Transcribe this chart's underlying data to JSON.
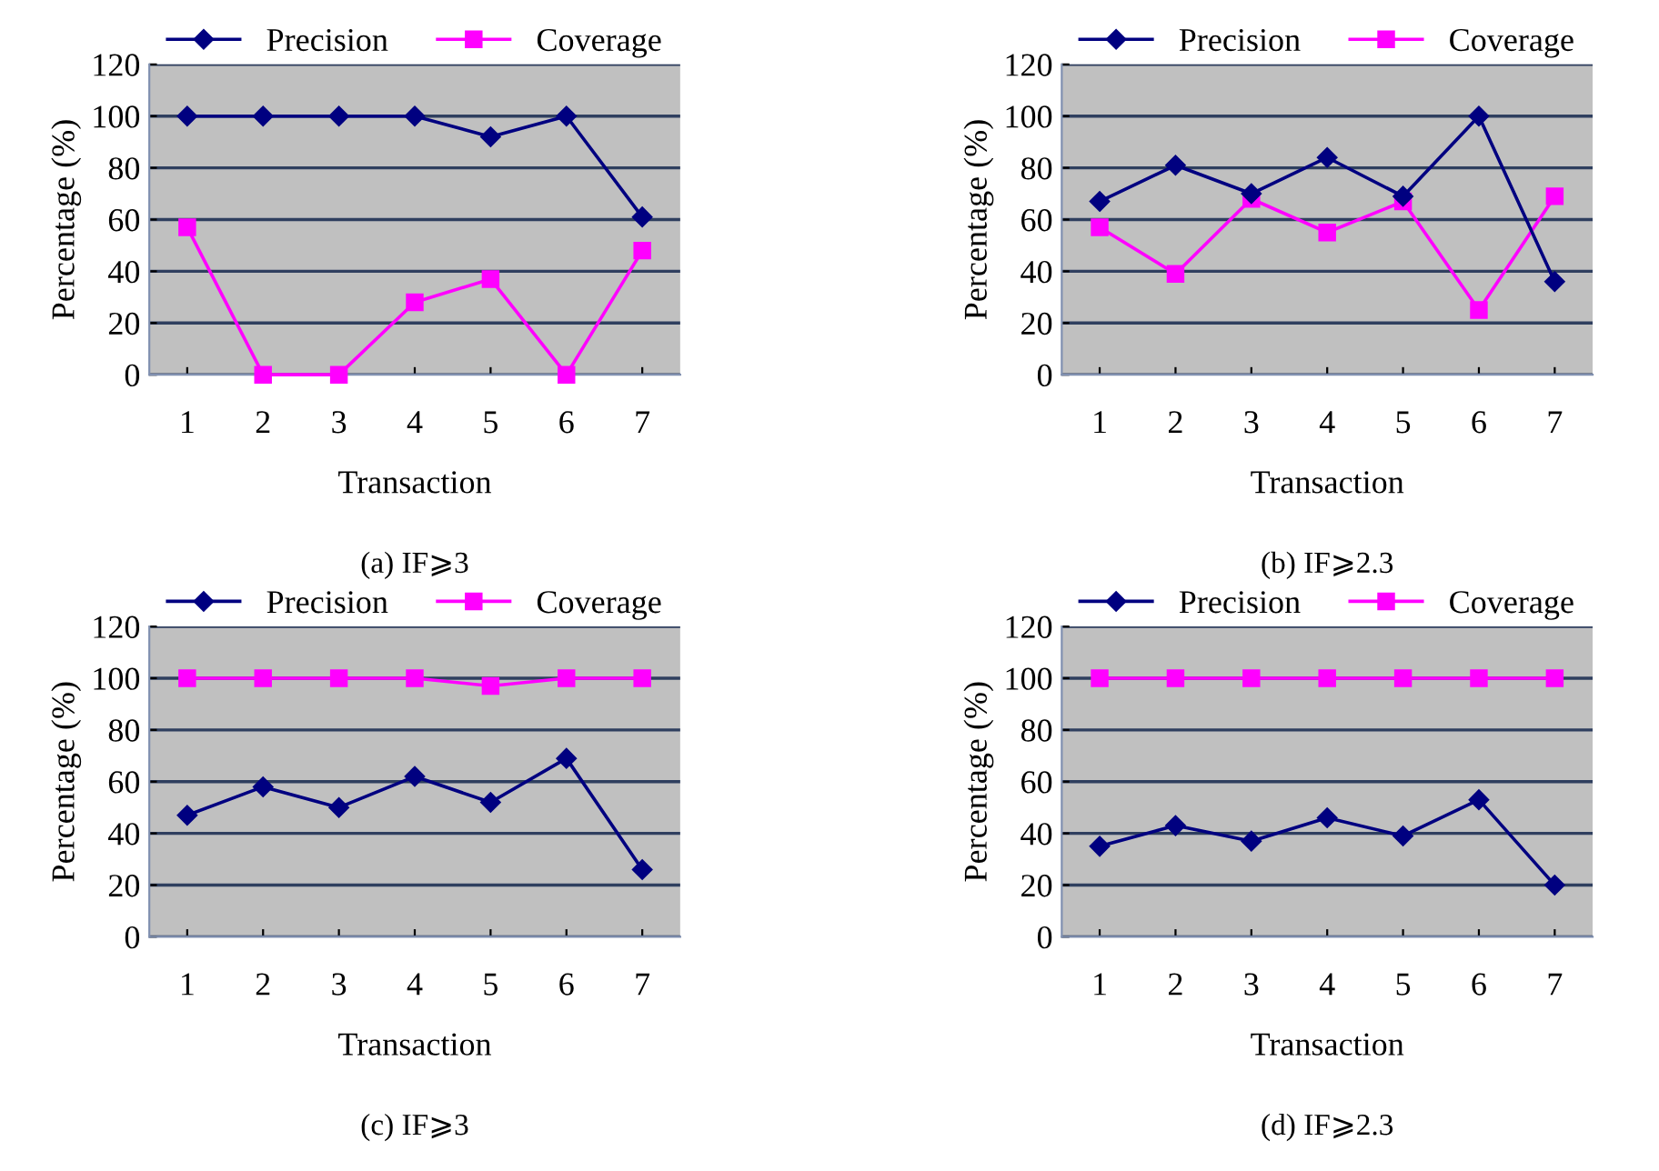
{
  "chart_data": [
    {
      "type": "line",
      "title": "(a) IF⩾3",
      "xlabel": "Transaction",
      "ylabel": "Percentage (%)",
      "categories": [
        "1",
        "2",
        "3",
        "4",
        "5",
        "6",
        "7"
      ],
      "ylim": [
        0,
        120
      ],
      "yticks": [
        0,
        20,
        40,
        60,
        80,
        100,
        120
      ],
      "grid": "y",
      "legend": "top",
      "series": [
        {
          "name": "Precision",
          "color": "#000080",
          "marker": "diamond",
          "values": [
            100,
            100,
            100,
            100,
            92,
            100,
            61
          ]
        },
        {
          "name": "Coverage",
          "color": "#ff00ff",
          "marker": "square",
          "values": [
            57,
            0,
            0,
            28,
            37,
            0,
            48
          ]
        }
      ]
    },
    {
      "type": "line",
      "title": "(b) IF⩾2.3",
      "xlabel": "Transaction",
      "ylabel": "Percentage (%)",
      "categories": [
        "1",
        "2",
        "3",
        "4",
        "5",
        "6",
        "7"
      ],
      "ylim": [
        0,
        120
      ],
      "yticks": [
        0,
        20,
        40,
        60,
        80,
        100,
        120
      ],
      "grid": "y",
      "legend": "top",
      "series": [
        {
          "name": "Precision",
          "color": "#000080",
          "marker": "diamond",
          "values": [
            67,
            81,
            70,
            84,
            69,
            100,
            36
          ]
        },
        {
          "name": "Coverage",
          "color": "#ff00ff",
          "marker": "square",
          "values": [
            57,
            39,
            68,
            55,
            67,
            25,
            69
          ]
        }
      ]
    },
    {
      "type": "line",
      "title": "(c) IF⩾3",
      "xlabel": "Transaction",
      "ylabel": "Percentage (%)",
      "categories": [
        "1",
        "2",
        "3",
        "4",
        "5",
        "6",
        "7"
      ],
      "ylim": [
        0,
        120
      ],
      "yticks": [
        0,
        20,
        40,
        60,
        80,
        100,
        120
      ],
      "grid": "y",
      "legend": "top",
      "series": [
        {
          "name": "Precision",
          "color": "#000080",
          "marker": "diamond",
          "values": [
            47,
            58,
            50,
            62,
            52,
            69,
            26
          ]
        },
        {
          "name": "Coverage",
          "color": "#ff00ff",
          "marker": "square",
          "values": [
            100,
            100,
            100,
            100,
            97,
            100,
            100
          ]
        }
      ]
    },
    {
      "type": "line",
      "title": "(d) IF⩾2.3",
      "xlabel": "Transaction",
      "ylabel": "Percentage (%)",
      "categories": [
        "1",
        "2",
        "3",
        "4",
        "5",
        "6",
        "7"
      ],
      "ylim": [
        0,
        120
      ],
      "yticks": [
        0,
        20,
        40,
        60,
        80,
        100,
        120
      ],
      "grid": "y",
      "legend": "top",
      "series": [
        {
          "name": "Precision",
          "color": "#000080",
          "marker": "diamond",
          "values": [
            35,
            43,
            37,
            46,
            39,
            53,
            20
          ]
        },
        {
          "name": "Coverage",
          "color": "#ff00ff",
          "marker": "square",
          "values": [
            100,
            100,
            100,
            100,
            100,
            100,
            100
          ]
        }
      ]
    }
  ]
}
